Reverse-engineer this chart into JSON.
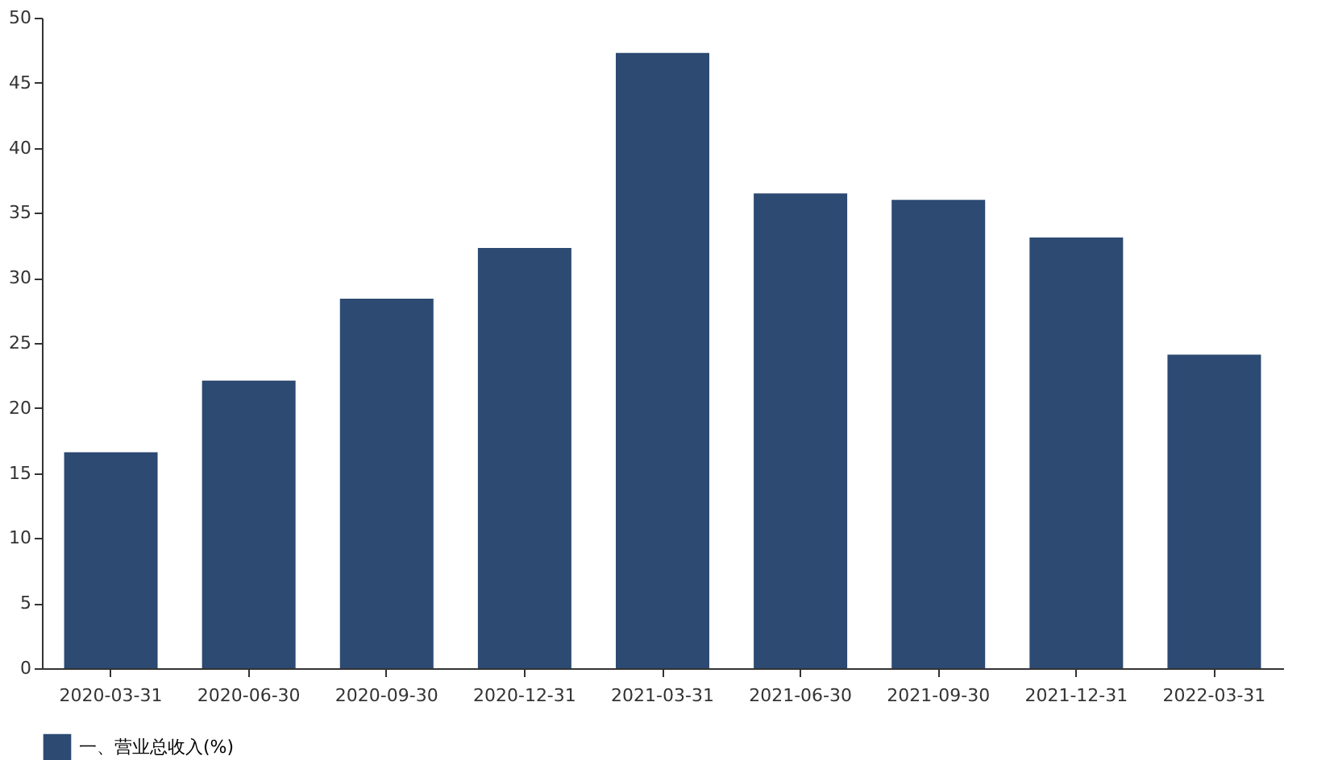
{
  "chart_data": {
    "type": "bar",
    "categories": [
      "2020-03-31",
      "2020-06-30",
      "2020-09-30",
      "2020-12-31",
      "2021-03-31",
      "2021-06-30",
      "2021-09-30",
      "2021-12-31",
      "2022-03-31"
    ],
    "series": [
      {
        "name": "一、营业总收入(%)",
        "color": "#2c4a72",
        "values": [
          16.6,
          22.1,
          28.4,
          32.3,
          47.3,
          36.5,
          36.0,
          33.1,
          24.1
        ]
      }
    ],
    "ylim": [
      0,
      50
    ],
    "yticks": [
      0,
      5,
      10,
      15,
      20,
      25,
      30,
      35,
      40,
      45,
      50
    ],
    "grid": false,
    "legend": "bottom"
  }
}
